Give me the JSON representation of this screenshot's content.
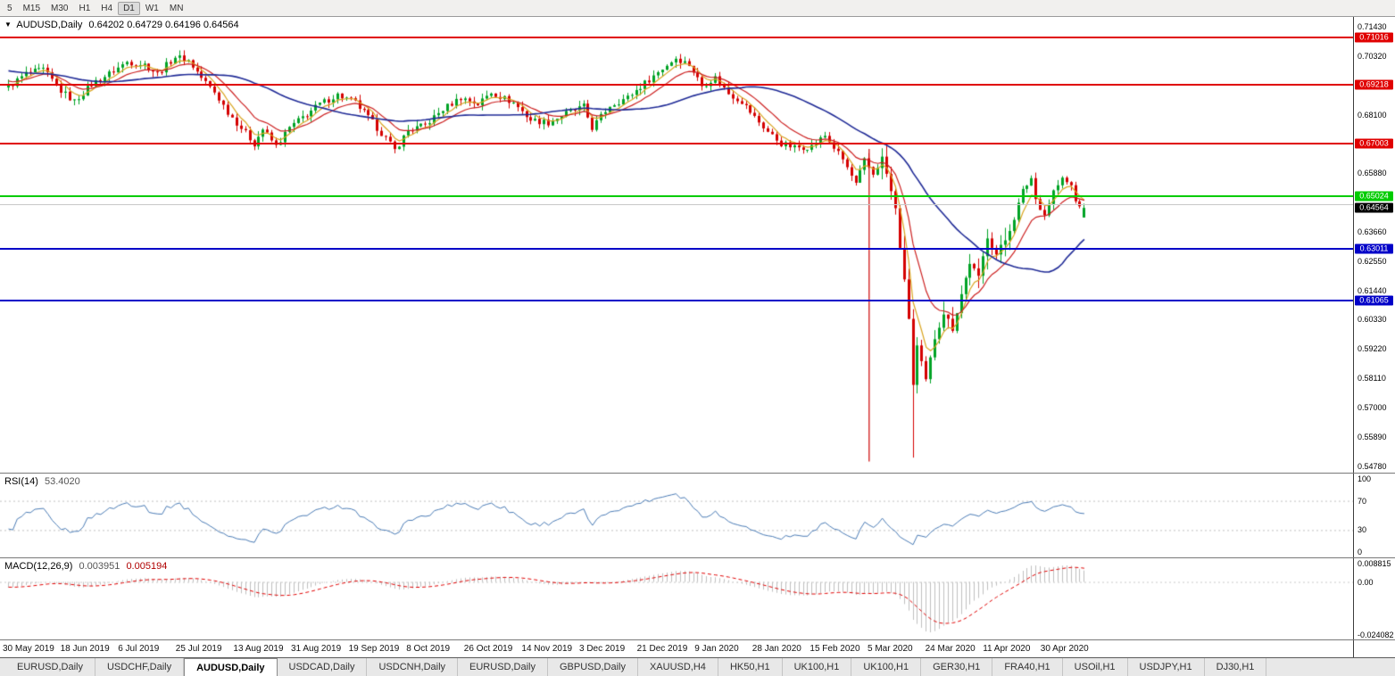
{
  "toolbar": {
    "timeframes": [
      "5",
      "M15",
      "M30",
      "H1",
      "H4",
      "D1",
      "W1",
      "MN"
    ],
    "active_timeframe": "D1"
  },
  "main_chart": {
    "header_symbol": "AUDUSD,Daily",
    "header_ohlc": "0.64202 0.64729 0.64196 0.64564",
    "y_ticks": [
      "0.71430",
      "0.70320",
      "0.68100",
      "0.65880",
      "0.63660",
      "0.62550",
      "0.61440",
      "0.60330",
      "0.59220",
      "0.58110",
      "0.57000",
      "0.55890",
      "0.54780"
    ],
    "levels": [
      {
        "value": 0.71016,
        "label": "0.71016",
        "color": "#e00000",
        "width": 2,
        "badge": true
      },
      {
        "value": 0.69218,
        "label": "0.69218",
        "color": "#e00000",
        "width": 2,
        "badge": true
      },
      {
        "value": 0.67003,
        "label": "0.67003",
        "color": "#e00000",
        "width": 2,
        "badge": true
      },
      {
        "value": 0.65024,
        "label": "0.65024",
        "color": "#00cc00",
        "width": 2,
        "badge": true
      },
      {
        "value": 0.647,
        "label": "",
        "color": "#c8c8c8",
        "width": 1,
        "badge": false
      },
      {
        "value": 0.63011,
        "label": "0.63011",
        "color": "#0000c8",
        "width": 2,
        "badge": true
      },
      {
        "value": 0.61065,
        "label": "0.61065",
        "color": "#0000c8",
        "width": 2,
        "badge": true
      }
    ],
    "current_price": {
      "value": 0.64564,
      "label": "0.64564",
      "badge_color": "#000000"
    }
  },
  "rsi": {
    "label": "RSI(14)",
    "value": "53.4020",
    "ticks": [
      {
        "label": "100",
        "value": 100
      },
      {
        "label": "70",
        "value": 70
      },
      {
        "label": "30",
        "value": 30
      },
      {
        "label": "0",
        "value": 0
      }
    ],
    "guide_levels": [
      70,
      30
    ]
  },
  "macd": {
    "label": "MACD(12,26,9)",
    "value_main": "0.003951",
    "value_signal": "0.005194",
    "ticks": [
      {
        "label": "0.008815",
        "value": 0.008815
      },
      {
        "label": "0.00",
        "value": 0
      },
      {
        "label": "-0.024082",
        "value": -0.024082
      }
    ]
  },
  "time_axis": [
    "30 May 2019",
    "18 Jun 2019",
    "6 Jul 2019",
    "25 Jul 2019",
    "13 Aug 2019",
    "31 Aug 2019",
    "19 Sep 2019",
    "8 Oct 2019",
    "26 Oct 2019",
    "14 Nov 2019",
    "3 Dec 2019",
    "21 Dec 2019",
    "9 Jan 2020",
    "28 Jan 2020",
    "15 Feb 2020",
    "5 Mar 2020",
    "24 Mar 2020",
    "11 Apr 2020",
    "30 Apr 2020"
  ],
  "tabs": [
    "EURUSD,Daily",
    "USDCHF,Daily",
    "AUDUSD,Daily",
    "USDCAD,Daily",
    "USDCNH,Daily",
    "EURUSD,Daily",
    "GBPUSD,Daily",
    "XAUUSD,H4",
    "HK50,H1",
    "UK100,H1",
    "UK100,H1",
    "GER30,H1",
    "FRA40,H1",
    "USOil,H1",
    "USDJPY,H1",
    "DJ30,H1"
  ],
  "active_tab_index": 2,
  "chart_data": {
    "type": "candlestick",
    "symbol": "AUDUSD",
    "timeframe": "Daily",
    "title": "AUDUSD Daily with RSI(14) and MACD(12,26,9)",
    "bar_count": 246,
    "y_axis": {
      "top_value": 0.71802,
      "bottom_value": 0.5453,
      "tick_step": 0.0111
    },
    "price_anchors": [
      [
        -60,
        0.714
      ],
      [
        -45,
        0.706
      ],
      [
        -30,
        0.701
      ],
      [
        -15,
        0.6985
      ],
      [
        -5,
        0.693
      ],
      [
        0,
        0.6915
      ],
      [
        4,
        0.6965
      ],
      [
        8,
        0.698
      ],
      [
        12,
        0.69
      ],
      [
        15,
        0.686
      ],
      [
        19,
        0.6925
      ],
      [
        23,
        0.6965
      ],
      [
        27,
        0.701
      ],
      [
        31,
        0.7
      ],
      [
        34,
        0.6965
      ],
      [
        38,
        0.703
      ],
      [
        41,
        0.7015
      ],
      [
        44,
        0.695
      ],
      [
        47,
        0.6895
      ],
      [
        50,
        0.682
      ],
      [
        53,
        0.676
      ],
      [
        56,
        0.67
      ],
      [
        58,
        0.6755
      ],
      [
        61,
        0.669
      ],
      [
        64,
        0.676
      ],
      [
        67,
        0.68
      ],
      [
        71,
        0.685
      ],
      [
        75,
        0.6885
      ],
      [
        79,
        0.6855
      ],
      [
        83,
        0.678
      ],
      [
        86,
        0.672
      ],
      [
        88,
        0.6675
      ],
      [
        91,
        0.675
      ],
      [
        95,
        0.677
      ],
      [
        99,
        0.683
      ],
      [
        103,
        0.6875
      ],
      [
        107,
        0.685
      ],
      [
        110,
        0.6895
      ],
      [
        115,
        0.6855
      ],
      [
        119,
        0.679
      ],
      [
        123,
        0.678
      ],
      [
        127,
        0.6815
      ],
      [
        131,
        0.684
      ],
      [
        133,
        0.676
      ],
      [
        137,
        0.6845
      ],
      [
        141,
        0.6875
      ],
      [
        145,
        0.693
      ],
      [
        149,
        0.6985
      ],
      [
        152,
        0.7025
      ],
      [
        155,
        0.7
      ],
      [
        158,
        0.692
      ],
      [
        161,
        0.695
      ],
      [
        164,
        0.689
      ],
      [
        167,
        0.686
      ],
      [
        170,
        0.68
      ],
      [
        173,
        0.6745
      ],
      [
        176,
        0.67
      ],
      [
        179,
        0.6685
      ],
      [
        183,
        0.669
      ],
      [
        186,
        0.673
      ],
      [
        190,
        0.664
      ],
      [
        193,
        0.6545
      ],
      [
        195,
        0.6635
      ],
      [
        197,
        0.6585
      ],
      [
        199,
        0.6645
      ],
      [
        200,
        0.6585
      ],
      [
        202,
        0.645
      ],
      [
        203,
        0.631
      ],
      [
        205,
        0.604
      ],
      [
        206,
        0.5785
      ],
      [
        207,
        0.593
      ],
      [
        209,
        0.58
      ],
      [
        211,
        0.5965
      ],
      [
        213,
        0.606
      ],
      [
        215,
        0.6
      ],
      [
        217,
        0.613
      ],
      [
        219,
        0.625
      ],
      [
        221,
        0.619
      ],
      [
        223,
        0.635
      ],
      [
        225,
        0.628
      ],
      [
        227,
        0.6335
      ],
      [
        229,
        0.642
      ],
      [
        231,
        0.652
      ],
      [
        233,
        0.657
      ],
      [
        234,
        0.649
      ],
      [
        236,
        0.643
      ],
      [
        238,
        0.652
      ],
      [
        240,
        0.6565
      ],
      [
        242,
        0.654
      ],
      [
        243,
        0.648
      ],
      [
        244,
        0.647
      ],
      [
        245,
        0.6456
      ]
    ],
    "noise_amp": 0.0024,
    "wick_amp": 0.0022,
    "volatility_zones": [
      {
        "from": 199,
        "to": 228,
        "mult": 2.3
      }
    ],
    "wick_lows": {
      "206": 0.551
    },
    "last_bar": {
      "open": 0.64202,
      "high": 0.64729,
      "low": 0.64196,
      "close": 0.64564
    },
    "vertical_line": {
      "bar": 196,
      "from": 0.668,
      "to": 0.5495,
      "color": "#cc0000"
    },
    "moving_averages": [
      {
        "type": "ema",
        "period": 5,
        "color": "#d9a420",
        "width": 1.2,
        "name": "fast-ma"
      },
      {
        "type": "ema",
        "period": 12,
        "color": "#cc2020",
        "width": 1.2,
        "name": "mid-ma"
      },
      {
        "type": "sma",
        "period": 35,
        "color": "#1f2a96",
        "width": 1.6,
        "name": "slow-ma"
      }
    ],
    "up_color": "#00a326",
    "down_color": "#d40000",
    "rsi_period": 14,
    "macd_params": [
      12,
      26,
      9
    ],
    "rsi_color": "#4a7bb5",
    "rsi_range": [
      0,
      100
    ],
    "macd_hist_color": "#bfbfbf",
    "macd_signal_color": "#e00000"
  }
}
